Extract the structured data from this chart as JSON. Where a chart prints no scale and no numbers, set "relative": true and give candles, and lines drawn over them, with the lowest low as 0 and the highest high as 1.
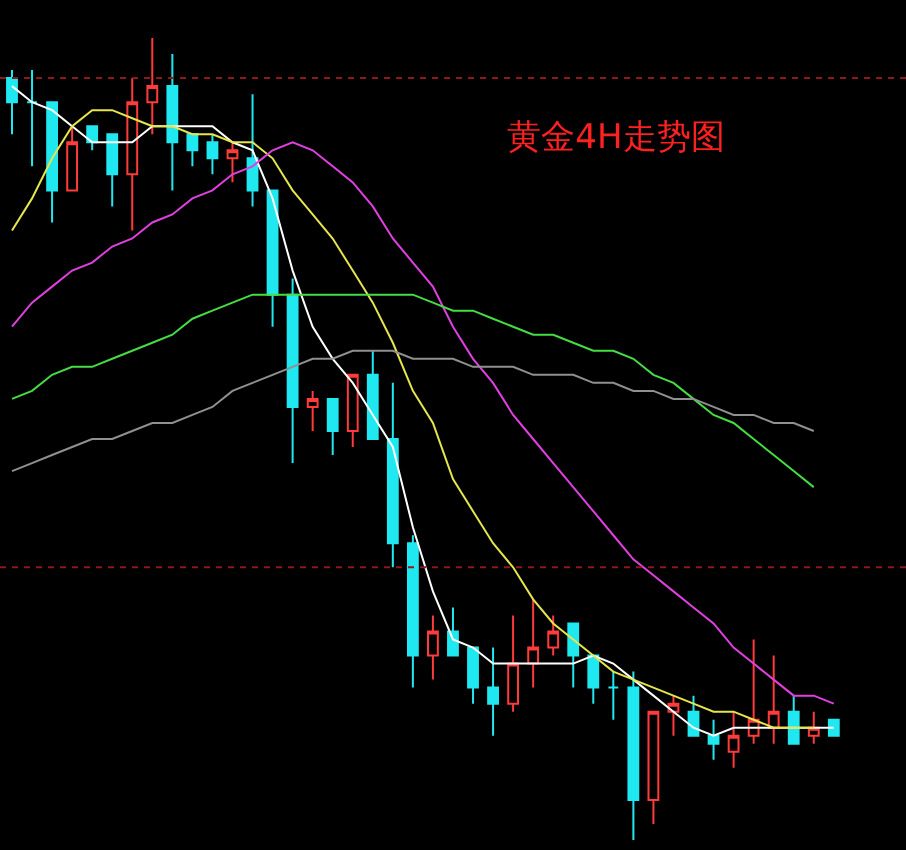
{
  "chart_data": {
    "type": "candlestick",
    "title": "黄金4H走势图",
    "relative": true,
    "tick_labels": false,
    "categories": [
      null,
      null,
      null,
      null,
      null,
      null,
      null,
      null,
      null,
      null,
      null,
      null,
      null,
      null,
      null,
      null,
      null,
      null,
      null,
      null,
      null,
      null,
      null,
      null,
      null,
      null,
      null,
      null,
      null,
      null,
      null,
      null,
      null,
      null,
      null,
      null,
      null,
      null,
      null,
      null,
      null,
      null
    ],
    "ohlc": [
      [
        0.95,
        0.96,
        0.88,
        0.92
      ],
      [
        0.92,
        0.96,
        0.84,
        0.92
      ],
      [
        0.92,
        0.92,
        0.77,
        0.81
      ],
      [
        0.81,
        0.89,
        0.81,
        0.87
      ],
      [
        0.89,
        0.89,
        0.86,
        0.87
      ],
      [
        0.88,
        0.88,
        0.79,
        0.83
      ],
      [
        0.83,
        0.95,
        0.76,
        0.92
      ],
      [
        0.92,
        1.0,
        0.88,
        0.94
      ],
      [
        0.94,
        0.98,
        0.81,
        0.87
      ],
      [
        0.88,
        0.88,
        0.84,
        0.86
      ],
      [
        0.87,
        0.88,
        0.83,
        0.85
      ],
      [
        0.85,
        0.87,
        0.82,
        0.86
      ],
      [
        0.85,
        0.93,
        0.79,
        0.81
      ],
      [
        0.81,
        0.81,
        0.64,
        0.68
      ],
      [
        0.68,
        0.7,
        0.47,
        0.54
      ],
      [
        0.54,
        0.56,
        0.51,
        0.55
      ],
      [
        0.55,
        0.55,
        0.48,
        0.51
      ],
      [
        0.51,
        0.58,
        0.49,
        0.58
      ],
      [
        0.58,
        0.61,
        0.5,
        0.5
      ],
      [
        0.5,
        0.57,
        0.34,
        0.37
      ],
      [
        0.37,
        0.38,
        0.19,
        0.23
      ],
      [
        0.23,
        0.28,
        0.2,
        0.26
      ],
      [
        0.26,
        0.29,
        0.23,
        0.23
      ],
      [
        0.24,
        0.24,
        0.17,
        0.19
      ],
      [
        0.19,
        0.24,
        0.13,
        0.17
      ],
      [
        0.17,
        0.28,
        0.16,
        0.22
      ],
      [
        0.22,
        0.3,
        0.19,
        0.24
      ],
      [
        0.24,
        0.28,
        0.23,
        0.26
      ],
      [
        0.27,
        0.27,
        0.19,
        0.23
      ],
      [
        0.23,
        0.23,
        0.17,
        0.19
      ],
      [
        0.19,
        0.21,
        0.15,
        0.19
      ],
      [
        0.19,
        0.21,
        0.0,
        0.05
      ],
      [
        0.05,
        0.16,
        0.02,
        0.16
      ],
      [
        0.16,
        0.18,
        0.13,
        0.17
      ],
      [
        0.16,
        0.18,
        0.13,
        0.13
      ],
      [
        0.13,
        0.15,
        0.1,
        0.12
      ],
      [
        0.11,
        0.16,
        0.09,
        0.13
      ],
      [
        0.13,
        0.25,
        0.12,
        0.15
      ],
      [
        0.14,
        0.23,
        0.12,
        0.16
      ],
      [
        0.16,
        0.18,
        0.12,
        0.12
      ],
      [
        0.13,
        0.16,
        0.12,
        0.14
      ],
      [
        0.15,
        0.15,
        0.13,
        0.13
      ]
    ],
    "series": [
      {
        "type": "line",
        "color": "#ffffff",
        "values": [
          0.94,
          0.92,
          0.91,
          0.89,
          0.87,
          0.87,
          0.87,
          0.89,
          0.89,
          0.89,
          0.89,
          0.87,
          0.86,
          0.8,
          0.71,
          0.64,
          0.6,
          0.57,
          0.53,
          0.49,
          0.39,
          0.31,
          0.25,
          0.24,
          0.22,
          0.22,
          0.22,
          0.22,
          0.22,
          0.23,
          0.22,
          0.2,
          0.18,
          0.16,
          0.14,
          0.13,
          0.14,
          0.14,
          0.14,
          0.14,
          0.14,
          0.14
        ]
      },
      {
        "type": "line",
        "color": "#e6e64c",
        "values": [
          0.76,
          0.8,
          0.85,
          0.89,
          0.91,
          0.91,
          0.9,
          0.89,
          0.89,
          0.88,
          0.88,
          0.87,
          0.87,
          0.85,
          0.81,
          0.78,
          0.75,
          0.71,
          0.67,
          0.62,
          0.56,
          0.52,
          0.45,
          0.41,
          0.37,
          0.34,
          0.3,
          0.27,
          0.25,
          0.23,
          0.21,
          0.2,
          0.19,
          0.18,
          0.17,
          0.16,
          0.16,
          0.15,
          0.14,
          0.14,
          0.14,
          null
        ]
      },
      {
        "type": "line",
        "color": "#e040e0",
        "values": [
          0.64,
          0.67,
          0.69,
          0.71,
          0.72,
          0.74,
          0.75,
          0.77,
          0.78,
          0.8,
          0.81,
          0.83,
          0.84,
          0.86,
          0.87,
          0.86,
          0.84,
          0.82,
          0.79,
          0.75,
          0.72,
          0.69,
          0.64,
          0.6,
          0.57,
          0.53,
          0.5,
          0.47,
          0.44,
          0.41,
          0.38,
          0.35,
          0.33,
          0.31,
          0.29,
          0.27,
          0.24,
          0.22,
          0.2,
          0.18,
          0.18,
          0.17
        ]
      },
      {
        "type": "line",
        "color": "#44dd44",
        "values": [
          0.55,
          0.56,
          0.58,
          0.59,
          0.59,
          0.6,
          0.61,
          0.62,
          0.63,
          0.65,
          0.66,
          0.67,
          0.68,
          0.68,
          0.68,
          0.68,
          0.68,
          0.68,
          0.68,
          0.68,
          0.68,
          0.67,
          0.66,
          0.66,
          0.65,
          0.64,
          0.63,
          0.63,
          0.62,
          0.61,
          0.61,
          0.6,
          0.58,
          0.57,
          0.55,
          0.53,
          0.52,
          0.5,
          0.48,
          0.46,
          0.44,
          null
        ]
      },
      {
        "type": "line",
        "color": "#909090",
        "values": [
          0.46,
          0.47,
          0.48,
          0.49,
          0.5,
          0.5,
          0.51,
          0.52,
          0.52,
          0.53,
          0.54,
          0.56,
          0.57,
          0.58,
          0.59,
          0.6,
          0.6,
          0.61,
          0.61,
          0.61,
          0.6,
          0.6,
          0.6,
          0.59,
          0.59,
          0.59,
          0.58,
          0.58,
          0.58,
          0.57,
          0.57,
          0.56,
          0.56,
          0.55,
          0.55,
          0.54,
          0.53,
          0.53,
          0.52,
          0.52,
          0.51,
          null
        ]
      }
    ],
    "ref_lines": [
      {
        "axis": "y",
        "value": 0.95,
        "color": "#8b1a1a",
        "line_style": "dotted"
      },
      {
        "axis": "y",
        "value": 0.34,
        "color": "#8b1a1a",
        "line_style": "dotted"
      }
    ]
  }
}
